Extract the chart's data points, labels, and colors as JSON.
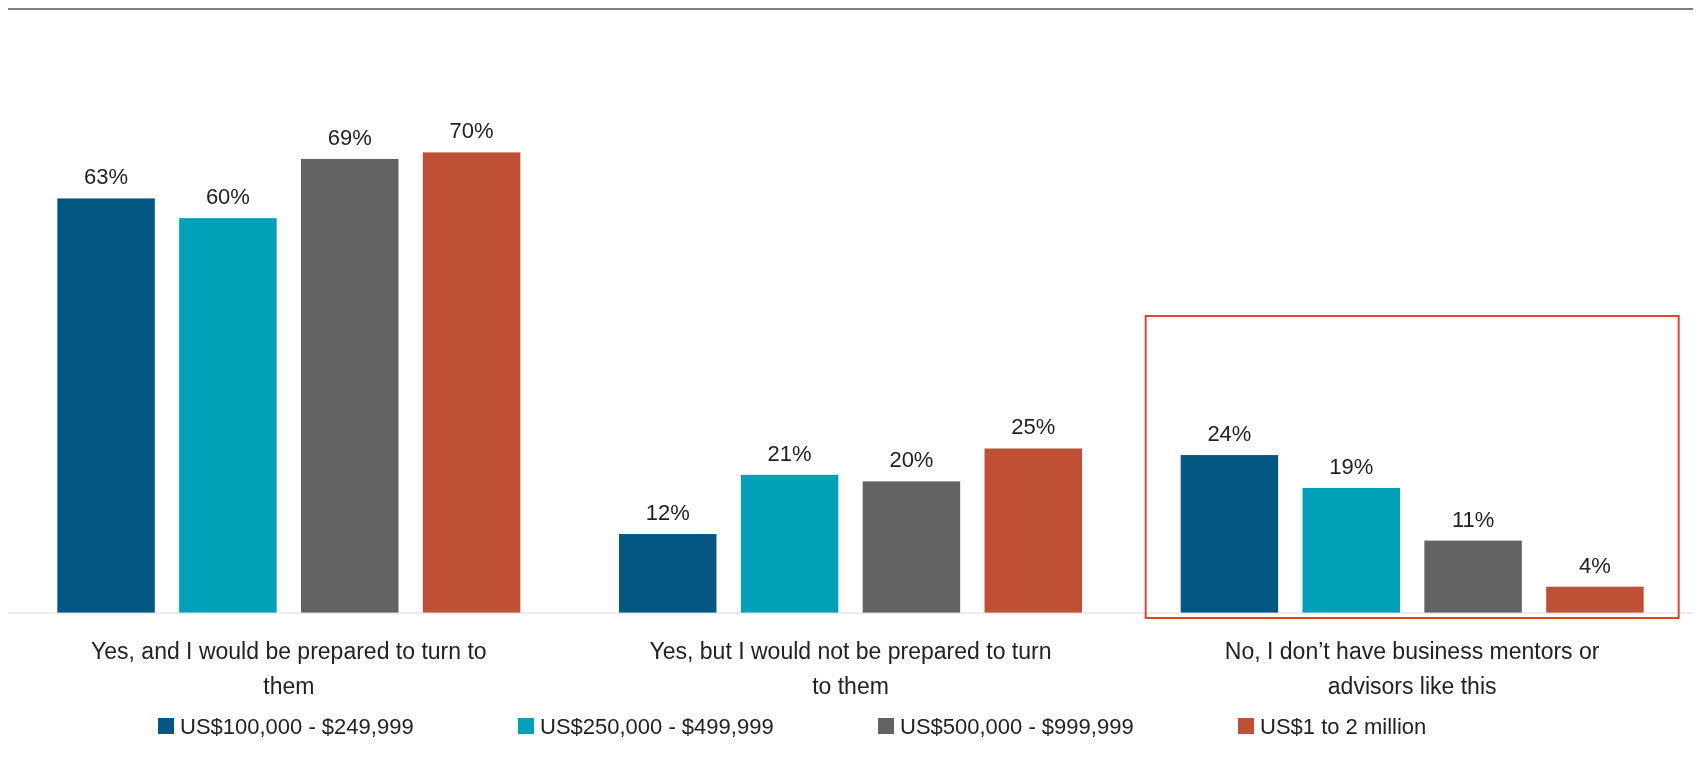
{
  "chart_data": {
    "type": "bar",
    "categories": [
      "Yes, and I would be prepared to turn to them",
      "Yes, but I would not be prepared to turn to them",
      "No, I don’t have business mentors or advisors like this"
    ],
    "series": [
      {
        "name": "US$100,000 - $249,999",
        "color": "#045782",
        "values": [
          63,
          12,
          24
        ],
        "value_labels": [
          "63%",
          "12%",
          "24%"
        ]
      },
      {
        "name": "US$250,000 - $499,999",
        "color": "#00a0b9",
        "values": [
          60,
          21,
          19
        ],
        "value_labels": [
          "60%",
          "21%",
          "19%"
        ]
      },
      {
        "name": "US$500,000 - $999,999",
        "color": "#636363",
        "values": [
          69,
          20,
          11
        ],
        "value_labels": [
          "69%",
          "20%",
          "11%"
        ]
      },
      {
        "name": "US$1 to 2 million",
        "color": "#c05035",
        "values": [
          70,
          25,
          4
        ],
        "value_labels": [
          "70%",
          "25%",
          "4%"
        ]
      }
    ],
    "legend": "bottom"
  }
}
